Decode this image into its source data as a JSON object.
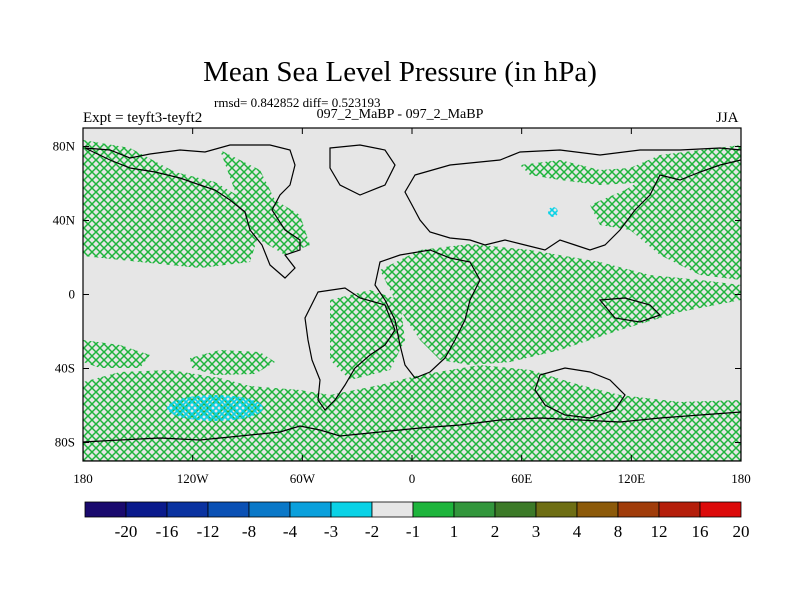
{
  "title": "Mean Sea Level Pressure (in hPa)",
  "stats": "rmsd= 0.842852 diff= 0.523193",
  "experiment": "Expt = teyft3-teyft2",
  "subtitle": "097_2_MaBP - 097_2_MaBP",
  "season": "JJA",
  "axes": {
    "x_ticks": [
      "180",
      "120W",
      "60W",
      "0",
      "60E",
      "120E",
      "180"
    ],
    "x_values": [
      -180,
      -120,
      -60,
      0,
      60,
      120,
      180
    ],
    "y_ticks": [
      "80N",
      "40N",
      "0",
      "40S",
      "80S"
    ],
    "y_values": [
      80,
      40,
      0,
      -40,
      -80
    ]
  },
  "colorbar": {
    "colors": [
      "#1a0a6e",
      "#0a1a8c",
      "#0a32a0",
      "#0a50b4",
      "#0a78c8",
      "#0aa0dc",
      "#0ad2e6",
      "#e6e6e6",
      "#1eb43c",
      "#32963c",
      "#3c7a28",
      "#6e6e14",
      "#8c5a0a",
      "#a03c0a",
      "#b41e0a",
      "#dc0a0a"
    ],
    "labels": [
      "-20",
      "-16",
      "-12",
      "-8",
      "-4",
      "-3",
      "-2",
      "-1",
      "1",
      "2",
      "3",
      "4",
      "8",
      "12",
      "16",
      "20"
    ]
  },
  "colors": {
    "background": "#e6e6e6",
    "hatch_green": "#1eb43c",
    "hatch_cyan": "#0ad2e6",
    "coastline": "#000000"
  }
}
